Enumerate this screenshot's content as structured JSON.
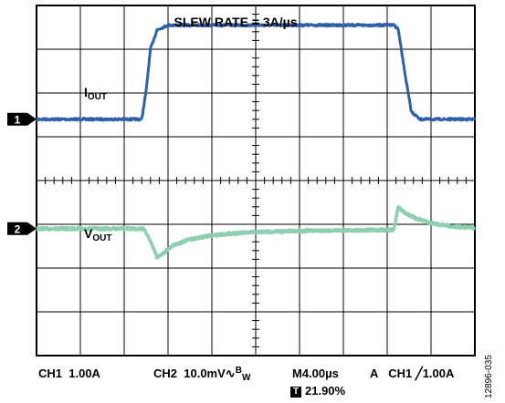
{
  "chart_data": {
    "type": "line",
    "title": "SLEW RATE = 3A/µs",
    "x_unit": "µs",
    "xlim": [
      0,
      40
    ],
    "series": [
      {
        "name_main": "I",
        "name_sub": "OUT",
        "channel": "1",
        "color": "#2f5fa5",
        "divisions_from_top": {
          "baseline": 2.6,
          "high": 0.45
        },
        "points": [
          [
            0,
            0
          ],
          [
            9.6,
            0
          ],
          [
            10.0,
            0.3
          ],
          [
            10.4,
            0.75
          ],
          [
            11.0,
            0.95
          ],
          [
            12.0,
            1.0
          ],
          [
            32.6,
            1.0
          ],
          [
            33.0,
            0.96
          ],
          [
            33.6,
            0.5
          ],
          [
            34.2,
            0.08
          ],
          [
            35.0,
            0
          ],
          [
            40,
            0
          ]
        ]
      },
      {
        "name_main": "V",
        "name_sub": "OUT",
        "channel": "2",
        "color": "#8ecfb1",
        "divisions_from_top": {
          "baseline": 5.1,
          "one_unit": 0.7
        },
        "points": [
          [
            0,
            0
          ],
          [
            9.8,
            0
          ],
          [
            10.4,
            -0.4
          ],
          [
            11.0,
            -0.95
          ],
          [
            11.4,
            -0.85
          ],
          [
            12.4,
            -0.55
          ],
          [
            14,
            -0.35
          ],
          [
            16,
            -0.22
          ],
          [
            18,
            -0.15
          ],
          [
            21,
            -0.1
          ],
          [
            26,
            -0.06
          ],
          [
            32.6,
            -0.04
          ],
          [
            33.0,
            0.7
          ],
          [
            33.5,
            0.55
          ],
          [
            34.5,
            0.35
          ],
          [
            36,
            0.18
          ],
          [
            38,
            0.07
          ],
          [
            40,
            0.03
          ]
        ]
      }
    ],
    "grid": {
      "x_divisions": 10,
      "y_divisions": 8,
      "minor_ticks": 5
    }
  },
  "status_bar": {
    "ch1_label": "CH1",
    "ch1_scale": "1.00A",
    "ch2_label": "CH2",
    "ch2_scale": "10.0mV",
    "bw_symbol": "∿",
    "bw_b": "B",
    "bw_w": "W",
    "timebase": "M4.00µs",
    "trigger_mode": "A",
    "trigger_source": "CH1",
    "trigger_edge_symbol": "╱",
    "trigger_level": "1.00A",
    "trigger_box": "T",
    "trigger_position": "21.90%"
  },
  "figure_id": "12896-035"
}
